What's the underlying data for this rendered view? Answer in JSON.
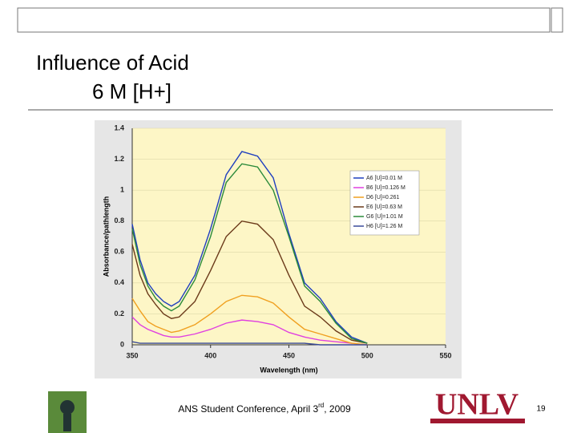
{
  "slide": {
    "title_lines": [
      "Influence of Acid",
      "6 M [H+]"
    ],
    "footer": [
      "ANS Student Conference, April 3",
      "rd",
      ", 2009"
    ],
    "page_number": "19",
    "logo_text": "UNLV"
  },
  "chart_data": {
    "type": "line",
    "xlabel": "Wavelength (nm)",
    "ylabel": "Absorbance/pathlength",
    "x": [
      350,
      355,
      360,
      365,
      370,
      375,
      380,
      390,
      400,
      410,
      420,
      430,
      440,
      450,
      460,
      470,
      480,
      490,
      500
    ],
    "xlim": [
      350,
      550
    ],
    "xticks": [
      350,
      400,
      450,
      500,
      550
    ],
    "ylim": [
      0,
      1.4
    ],
    "yticks": [
      0,
      0.2,
      0.4,
      0.6,
      0.8,
      1,
      1.2,
      1.4
    ],
    "legend": "upper right",
    "series": [
      {
        "name": "A6 [U]=0.01 M",
        "color": "#1f3fbf",
        "values": [
          0.78,
          0.55,
          0.4,
          0.33,
          0.28,
          0.25,
          0.28,
          0.45,
          0.75,
          1.1,
          1.25,
          1.22,
          1.08,
          0.72,
          0.4,
          0.3,
          0.15,
          0.05,
          0.01
        ]
      },
      {
        "name": "B6 [U]=0.126 M",
        "color": "#e040e0",
        "values": [
          0.18,
          0.13,
          0.1,
          0.08,
          0.06,
          0.05,
          0.05,
          0.07,
          0.1,
          0.14,
          0.16,
          0.15,
          0.13,
          0.08,
          0.05,
          0.03,
          0.02,
          0.01,
          0
        ]
      },
      {
        "name": "D6 [U]=0.261",
        "color": "#f0a020",
        "values": [
          0.3,
          0.22,
          0.15,
          0.12,
          0.1,
          0.08,
          0.09,
          0.13,
          0.2,
          0.28,
          0.32,
          0.31,
          0.27,
          0.18,
          0.1,
          0.07,
          0.04,
          0.01,
          0
        ]
      },
      {
        "name": "E6 [U]=0.63 M",
        "color": "#6b3a1a",
        "values": [
          0.65,
          0.45,
          0.33,
          0.26,
          0.2,
          0.17,
          0.18,
          0.28,
          0.48,
          0.7,
          0.8,
          0.78,
          0.68,
          0.45,
          0.25,
          0.18,
          0.09,
          0.03,
          0.01
        ]
      },
      {
        "name": "G6 [U]=1.01 M",
        "color": "#2a8a3a",
        "values": [
          0.75,
          0.52,
          0.38,
          0.3,
          0.25,
          0.22,
          0.25,
          0.42,
          0.7,
          1.05,
          1.17,
          1.15,
          1.0,
          0.7,
          0.38,
          0.28,
          0.14,
          0.04,
          0.01
        ]
      },
      {
        "name": "H6 [U]=1.26 M",
        "color": "#3a4a9a",
        "values": [
          0.02,
          0.01,
          0.01,
          0.01,
          0.01,
          0.01,
          0.01,
          0.01,
          0.01,
          0.01,
          0.01,
          0.01,
          0.01,
          0.01,
          0.01,
          0,
          0,
          0,
          0
        ]
      }
    ]
  }
}
